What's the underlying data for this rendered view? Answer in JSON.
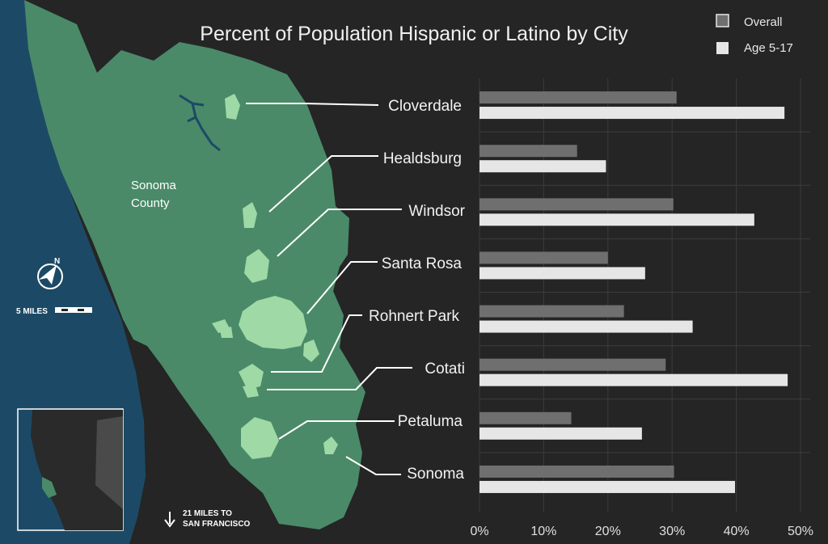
{
  "colors": {
    "background": "#252525",
    "ocean": "#1c4a66",
    "county": "#4a8a68",
    "city": "#9ed9a6",
    "overall_bar": "#6f6f6f",
    "youth_bar": "#e6e6e6",
    "grid": "#3c3c3c",
    "leader": "#ffffff"
  },
  "map": {
    "county_label_line1": "Sonoma",
    "county_label_line2": "County",
    "scale_label": "5 MILES",
    "sf_line1": "21 MILES TO",
    "sf_line2": "SAN FRANCISCO",
    "compass_letter": "N",
    "icons": [
      "compass-icon",
      "scale-bar-icon",
      "down-arrow-icon"
    ]
  },
  "chart_data": {
    "type": "bar",
    "orientation": "horizontal",
    "title": "Percent of Population Hispanic or Latino by City",
    "xlabel": "",
    "ylabel": "",
    "xlim": [
      0,
      50
    ],
    "x_ticks": [
      "0%",
      "10%",
      "20%",
      "30%",
      "40%",
      "50%"
    ],
    "grid": true,
    "legend_position": "top-right",
    "categories": [
      "Cloverdale",
      "Healdsburg",
      "Windsor",
      "Santa Rosa",
      "Rohnert Park",
      "Cotati",
      "Petaluma",
      "Sonoma"
    ],
    "series": [
      {
        "name": "Overall",
        "color": "#6f6f6f",
        "values": [
          30.7,
          15.2,
          30.2,
          20.0,
          22.5,
          29.0,
          14.3,
          30.3
        ]
      },
      {
        "name": "Age 5-17",
        "color": "#e6e6e6",
        "values": [
          47.5,
          19.7,
          42.8,
          25.8,
          33.2,
          48.0,
          25.3,
          39.8
        ]
      }
    ]
  }
}
